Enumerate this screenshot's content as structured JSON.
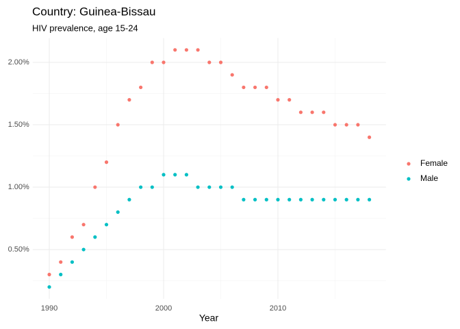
{
  "chart_data": {
    "type": "scatter",
    "title": "Country: Guinea-Bissau",
    "subtitle": "HIV prevalence, age 15-24",
    "x_label": "Year",
    "x": [
      1990,
      1991,
      1992,
      1993,
      1994,
      1995,
      1996,
      1997,
      1998,
      1999,
      2000,
      2001,
      2002,
      2003,
      2004,
      2005,
      2006,
      2007,
      2008,
      2009,
      2010,
      2011,
      2012,
      2013,
      2014,
      2015,
      2016,
      2017,
      2018
    ],
    "series": [
      {
        "name": "Female",
        "color": "#F8766D",
        "values": [
          0.3,
          0.4,
          0.6,
          0.7,
          1.0,
          1.2,
          1.5,
          1.7,
          1.8,
          2.0,
          2.0,
          2.1,
          2.1,
          2.1,
          2.0,
          2.0,
          1.9,
          1.8,
          1.8,
          1.8,
          1.7,
          1.7,
          1.6,
          1.6,
          1.6,
          1.5,
          1.5,
          1.5,
          1.4
        ]
      },
      {
        "name": "Male",
        "color": "#00BFC4",
        "values": [
          0.2,
          0.3,
          0.4,
          0.5,
          0.6,
          0.7,
          0.8,
          0.9,
          1.0,
          1.0,
          1.1,
          1.1,
          1.1,
          1.0,
          1.0,
          1.0,
          1.0,
          0.9,
          0.9,
          0.9,
          0.9,
          0.9,
          0.9,
          0.9,
          0.9,
          0.9,
          0.9,
          0.9,
          0.9
        ]
      }
    ],
    "xlim": [
      1988.55,
      2019.45
    ],
    "xticks": [
      1990,
      2000,
      2010
    ],
    "ylim": [
      0.105,
      2.195
    ],
    "yticks": [
      {
        "value": 0.5,
        "label": "0.50%"
      },
      {
        "value": 1.0,
        "label": "1.00%"
      },
      {
        "value": 1.5,
        "label": "1.50%"
      },
      {
        "value": 2.0,
        "label": "2.00%"
      }
    ],
    "grid": true,
    "legend": "right"
  }
}
